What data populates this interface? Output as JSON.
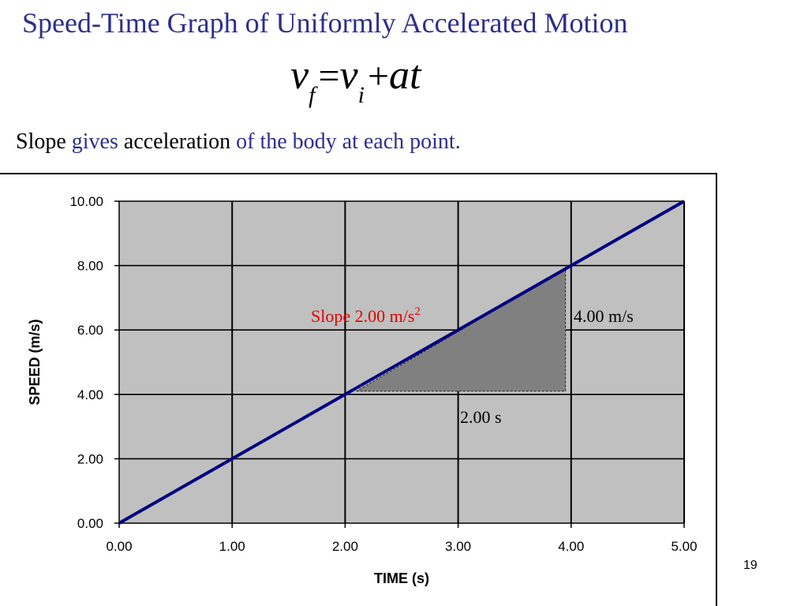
{
  "slide": {
    "title": "Speed-Time Graph of Uniformly Accelerated Motion",
    "formula": {
      "lhs_var": "v",
      "lhs_sub": "f",
      "eq": "=",
      "rhs_var": "v",
      "rhs_sub": "i",
      "plus": "+",
      "rhs_term": "at"
    },
    "subtitle": {
      "part1": "Slope ",
      "part2": "gives",
      "part3": " acceleration ",
      "part4": "of the body at each point."
    },
    "page_number": "19"
  },
  "colors": {
    "title": "#2e2e8c",
    "line": "#000080",
    "plot_bg": "#c0c0c0",
    "triangle": "#808080",
    "slope_label": "#e00000"
  },
  "chart_data": {
    "type": "line",
    "x": [
      0,
      5
    ],
    "series": [
      {
        "values": [
          0,
          10
        ]
      }
    ],
    "xlabel": "TIME (s)",
    "ylabel": "SPEED (m/s)",
    "xlim": [
      0,
      5
    ],
    "ylim": [
      0,
      10
    ],
    "xticks": [
      0,
      1,
      2,
      3,
      4,
      5
    ],
    "yticks": [
      0,
      2,
      4,
      6,
      8,
      10
    ],
    "xtick_labels": [
      "0.00",
      "1.00",
      "2.00",
      "3.00",
      "4.00",
      "5.00"
    ],
    "ytick_labels": [
      "0.00",
      "2.00",
      "4.00",
      "6.00",
      "8.00",
      "10.00"
    ],
    "grid": true,
    "triangle": {
      "x1": 2.1,
      "x2": 3.95,
      "y1": 4.1,
      "y2": 7.9
    },
    "annotations": {
      "slope": "Slope 2.00 m/s",
      "slope_sup": "2",
      "rise": "4.00 m/s",
      "run": "2.00 s"
    }
  }
}
